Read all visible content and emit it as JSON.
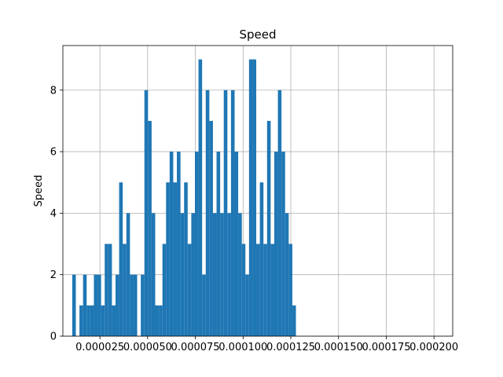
{
  "chart_data": {
    "type": "bar",
    "title": "Speed",
    "xlabel": "",
    "ylabel": "Speed",
    "xlim": [
      5.6e-06,
      0.0002098
    ],
    "ylim": [
      0,
      9.45
    ],
    "grid": true,
    "color": "#1f77b4",
    "x_ticks": [
      2.5e-05,
      5e-05,
      7.5e-05,
      0.0001,
      0.000125,
      0.00015,
      0.000175,
      0.0002
    ],
    "x_tick_labels": [
      "0.000025",
      "0.000050",
      "0.000075",
      "0.000100",
      "0.000125",
      "0.000150",
      "0.000175",
      "0.000200"
    ],
    "y_ticks": [
      0,
      2,
      4,
      6,
      8
    ],
    "y_tick_labels": [
      "0",
      "2",
      "4",
      "6",
      "8"
    ],
    "bins": {
      "start": 1.05e-05,
      "width": 1.89e-06,
      "counts": [
        2,
        0,
        1,
        2,
        1,
        1,
        2,
        2,
        1,
        3,
        3,
        1,
        2,
        5,
        3,
        4,
        2,
        2,
        0,
        2,
        8,
        7,
        4,
        1,
        1,
        3,
        5,
        6,
        5,
        6,
        4,
        5,
        3,
        4,
        6,
        9,
        2,
        8,
        7,
        4,
        6,
        4,
        8,
        4,
        8,
        6,
        4,
        3,
        2,
        9,
        9,
        3,
        5,
        3,
        7,
        3,
        6,
        8,
        6,
        4,
        3,
        1
      ]
    }
  }
}
